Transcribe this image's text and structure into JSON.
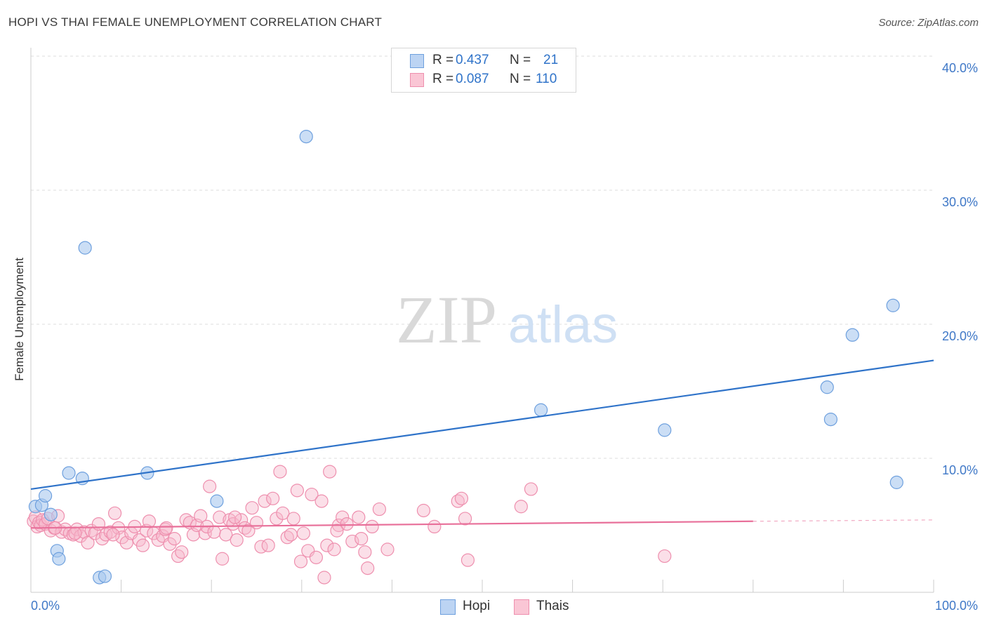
{
  "title": "HOPI VS THAI FEMALE UNEMPLOYMENT CORRELATION CHART",
  "source": "Source: ZipAtlas.com",
  "watermark": {
    "zip": "ZIP",
    "atlas": "atlas"
  },
  "colors": {
    "hopi_fill": "#a9c8ef",
    "hopi_stroke": "#6ea0de",
    "hopi_line": "#2f73c9",
    "thai_fill": "#f7b8cc",
    "thai_stroke": "#ee8fae",
    "thai_line": "#e8709a",
    "tick_label": "#3f78c7",
    "grid": "#dddddd"
  },
  "stats": {
    "hopi": {
      "r_label": "R =",
      "r_value": "0.437",
      "n_label": "N =",
      "n_value": "21"
    },
    "thai": {
      "r_label": "R =",
      "r_value": "0.087",
      "n_label": "N =",
      "n_value": "110"
    }
  },
  "legend": {
    "hopi": "Hopi",
    "thai": "Thais"
  },
  "chart_data": {
    "type": "scatter",
    "xlabel": "",
    "ylabel": "Female Unemployment",
    "xlim": [
      0,
      100
    ],
    "ylim": [
      0,
      40
    ],
    "x_tick_labels": [
      "0.0%",
      "100.0%"
    ],
    "y_ticks": [
      10,
      20,
      30,
      40
    ],
    "y_tick_labels": [
      "10.0%",
      "20.0%",
      "30.0%",
      "40.0%"
    ],
    "grid": true,
    "legend_position": "bottom-center",
    "series": [
      {
        "name": "Hopi",
        "points": [
          [
            0.5,
            6.4
          ],
          [
            1.2,
            6.5
          ],
          [
            1.6,
            7.2
          ],
          [
            2.2,
            5.8
          ],
          [
            2.9,
            3.1
          ],
          [
            3.1,
            2.5
          ],
          [
            4.2,
            8.9
          ],
          [
            5.7,
            8.5
          ],
          [
            6.0,
            25.7
          ],
          [
            7.6,
            1.1
          ],
          [
            8.2,
            1.2
          ],
          [
            12.9,
            8.9
          ],
          [
            20.6,
            6.8
          ],
          [
            30.5,
            34.0
          ],
          [
            56.5,
            13.6
          ],
          [
            70.2,
            12.1
          ],
          [
            88.2,
            15.3
          ],
          [
            88.6,
            12.9
          ],
          [
            91.0,
            19.2
          ],
          [
            95.5,
            21.4
          ],
          [
            95.9,
            8.2
          ]
        ],
        "trend": {
          "x": [
            0,
            100
          ],
          "y": [
            7.7,
            17.3
          ]
        }
      },
      {
        "name": "Thais",
        "points": [
          [
            0.3,
            5.3
          ],
          [
            0.5,
            5.6
          ],
          [
            0.7,
            4.9
          ],
          [
            0.9,
            5.2
          ],
          [
            1.1,
            5.0
          ],
          [
            1.3,
            5.4
          ],
          [
            1.6,
            5.1
          ],
          [
            1.9,
            5.5
          ],
          [
            2.2,
            4.6
          ],
          [
            2.6,
            4.8
          ],
          [
            3.0,
            5.7
          ],
          [
            3.4,
            4.5
          ],
          [
            3.8,
            4.7
          ],
          [
            4.3,
            4.4
          ],
          [
            4.7,
            4.3
          ],
          [
            5.1,
            4.7
          ],
          [
            5.5,
            4.2
          ],
          [
            5.9,
            4.5
          ],
          [
            6.3,
            3.7
          ],
          [
            6.7,
            4.6
          ],
          [
            7.1,
            4.4
          ],
          [
            7.5,
            5.1
          ],
          [
            7.9,
            4.0
          ],
          [
            8.3,
            4.3
          ],
          [
            8.8,
            4.5
          ],
          [
            9.3,
            5.9
          ],
          [
            9.7,
            4.8
          ],
          [
            10.1,
            4.1
          ],
          [
            10.6,
            3.7
          ],
          [
            11.1,
            4.4
          ],
          [
            11.5,
            4.9
          ],
          [
            12.0,
            3.9
          ],
          [
            12.4,
            3.5
          ],
          [
            12.8,
            4.6
          ],
          [
            13.1,
            5.3
          ],
          [
            13.6,
            4.4
          ],
          [
            14.1,
            3.9
          ],
          [
            14.6,
            4.2
          ],
          [
            14.9,
            4.7
          ],
          [
            15.4,
            3.6
          ],
          [
            15.9,
            4.0
          ],
          [
            16.3,
            2.7
          ],
          [
            16.7,
            3.0
          ],
          [
            17.2,
            5.4
          ],
          [
            17.6,
            5.2
          ],
          [
            18.0,
            4.3
          ],
          [
            18.4,
            5.0
          ],
          [
            18.8,
            5.7
          ],
          [
            19.3,
            4.4
          ],
          [
            19.5,
            4.9
          ],
          [
            19.8,
            7.9
          ],
          [
            20.3,
            4.5
          ],
          [
            20.9,
            5.6
          ],
          [
            21.2,
            2.5
          ],
          [
            21.6,
            4.3
          ],
          [
            22.0,
            5.4
          ],
          [
            22.4,
            5.1
          ],
          [
            22.8,
            3.9
          ],
          [
            23.3,
            5.4
          ],
          [
            23.7,
            4.8
          ],
          [
            24.1,
            4.6
          ],
          [
            24.5,
            6.3
          ],
          [
            25.0,
            5.2
          ],
          [
            25.5,
            3.4
          ],
          [
            25.9,
            6.8
          ],
          [
            26.3,
            3.5
          ],
          [
            26.8,
            7.0
          ],
          [
            27.2,
            5.5
          ],
          [
            27.6,
            9.0
          ],
          [
            27.9,
            5.9
          ],
          [
            28.4,
            4.1
          ],
          [
            29.1,
            5.5
          ],
          [
            29.5,
            7.6
          ],
          [
            29.9,
            2.3
          ],
          [
            30.2,
            4.4
          ],
          [
            30.7,
            3.1
          ],
          [
            31.1,
            7.3
          ],
          [
            31.6,
            2.6
          ],
          [
            32.2,
            6.8
          ],
          [
            32.5,
            1.1
          ],
          [
            32.8,
            3.5
          ],
          [
            33.1,
            9.0
          ],
          [
            33.6,
            3.2
          ],
          [
            34.1,
            5.0
          ],
          [
            34.5,
            5.6
          ],
          [
            35.0,
            5.1
          ],
          [
            35.6,
            3.8
          ],
          [
            36.3,
            5.6
          ],
          [
            36.6,
            4.0
          ],
          [
            37.0,
            3.0
          ],
          [
            37.3,
            1.8
          ],
          [
            37.8,
            4.9
          ],
          [
            38.6,
            6.2
          ],
          [
            39.5,
            3.2
          ],
          [
            43.5,
            6.1
          ],
          [
            44.7,
            4.9
          ],
          [
            47.3,
            6.8
          ],
          [
            47.7,
            7.0
          ],
          [
            48.1,
            5.5
          ],
          [
            48.4,
            2.4
          ],
          [
            54.3,
            6.4
          ],
          [
            55.4,
            7.7
          ],
          [
            70.2,
            2.7
          ],
          [
            2.7,
            4.8
          ],
          [
            4.9,
            4.4
          ],
          [
            9.1,
            4.3
          ],
          [
            15.0,
            4.8
          ],
          [
            22.6,
            5.6
          ],
          [
            28.8,
            4.3
          ],
          [
            33.9,
            4.6
          ]
        ],
        "trend": {
          "x": [
            0,
            80
          ],
          "y": [
            4.8,
            5.3
          ]
        },
        "trend_dashed": {
          "x": [
            80,
            100
          ],
          "y": [
            5.3,
            5.4
          ]
        }
      }
    ]
  }
}
